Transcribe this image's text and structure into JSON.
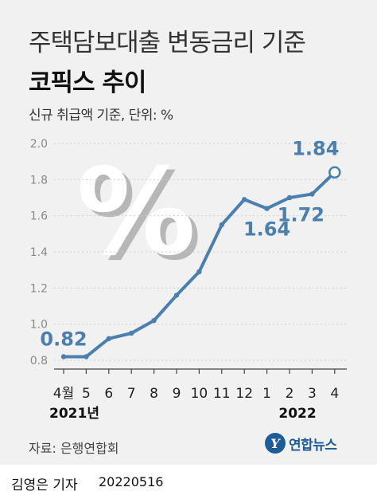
{
  "header": {
    "title_line1": "주택담보대출 변동금리 기준",
    "title_line2": "코픽스 추이",
    "subtitle": "신규 취급액 기준, 단위: %"
  },
  "chart_data": {
    "type": "line",
    "categories": [
      "4월",
      "5",
      "6",
      "7",
      "8",
      "9",
      "10",
      "11",
      "12",
      "1",
      "2",
      "3",
      "4"
    ],
    "values": [
      0.82,
      0.82,
      0.92,
      0.95,
      1.02,
      1.16,
      1.29,
      1.55,
      1.69,
      1.64,
      1.7,
      1.72,
      1.84
    ],
    "data_labels": [
      {
        "index": 0,
        "text": "0.82"
      },
      {
        "index": 9,
        "text": "1.64"
      },
      {
        "index": 11,
        "text": "1.72"
      },
      {
        "index": 12,
        "text": "1.84"
      }
    ],
    "y_ticks": [
      "0.8",
      "1.0",
      "1.2",
      "1.4",
      "1.6",
      "1.8",
      "2.0"
    ],
    "ylim": [
      0.8,
      2.0
    ],
    "year_labels": [
      {
        "index": 0,
        "text": "2021년"
      },
      {
        "index": 11,
        "text": "2022"
      }
    ],
    "grid": true,
    "line_color": "#4a7fae",
    "decoration_glyph": "%"
  },
  "source": "자료: 은행연합회",
  "logo": {
    "mark": "Y",
    "text": "연합뉴스",
    "color": "#1f5b98",
    "icon": "yonhap-logo-icon"
  },
  "footer": {
    "byline": "김영은 기자",
    "date": "20220516"
  }
}
